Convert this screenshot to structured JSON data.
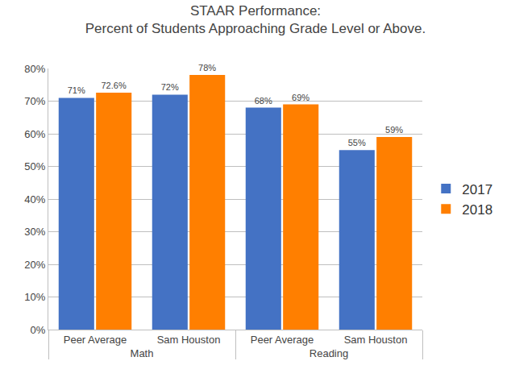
{
  "chart_data": {
    "type": "bar",
    "title": "STAAR Performance:\nPercent of Students Approaching Grade Level or Above.",
    "categories": [
      "Peer Average",
      "Sam Houston",
      "Peer Average",
      "Sam Houston"
    ],
    "category_groups": [
      "Math",
      "Math",
      "Reading",
      "Reading"
    ],
    "series": [
      {
        "name": "2017",
        "color": "#4472c4",
        "values": [
          71,
          72,
          68,
          55
        ],
        "value_labels": [
          "71%",
          "72%",
          "68%",
          "55%"
        ]
      },
      {
        "name": "2018",
        "color": "#ff7f00",
        "values": [
          72.6,
          78,
          69,
          59
        ],
        "value_labels": [
          "72.6%",
          "78%",
          "69%",
          "59%"
        ]
      }
    ],
    "ylim": [
      0,
      80
    ],
    "yticks": [
      {
        "value": 0,
        "label": "0%"
      },
      {
        "value": 10,
        "label": "10%"
      },
      {
        "value": 20,
        "label": "20%"
      },
      {
        "value": 30,
        "label": "30%"
      },
      {
        "value": 40,
        "label": "40%"
      },
      {
        "value": 50,
        "label": "50%"
      },
      {
        "value": 60,
        "label": "60%"
      },
      {
        "value": 70,
        "label": "70%"
      },
      {
        "value": 80,
        "label": "80%"
      }
    ],
    "grid": true,
    "data_labels": true,
    "legend": "right"
  }
}
